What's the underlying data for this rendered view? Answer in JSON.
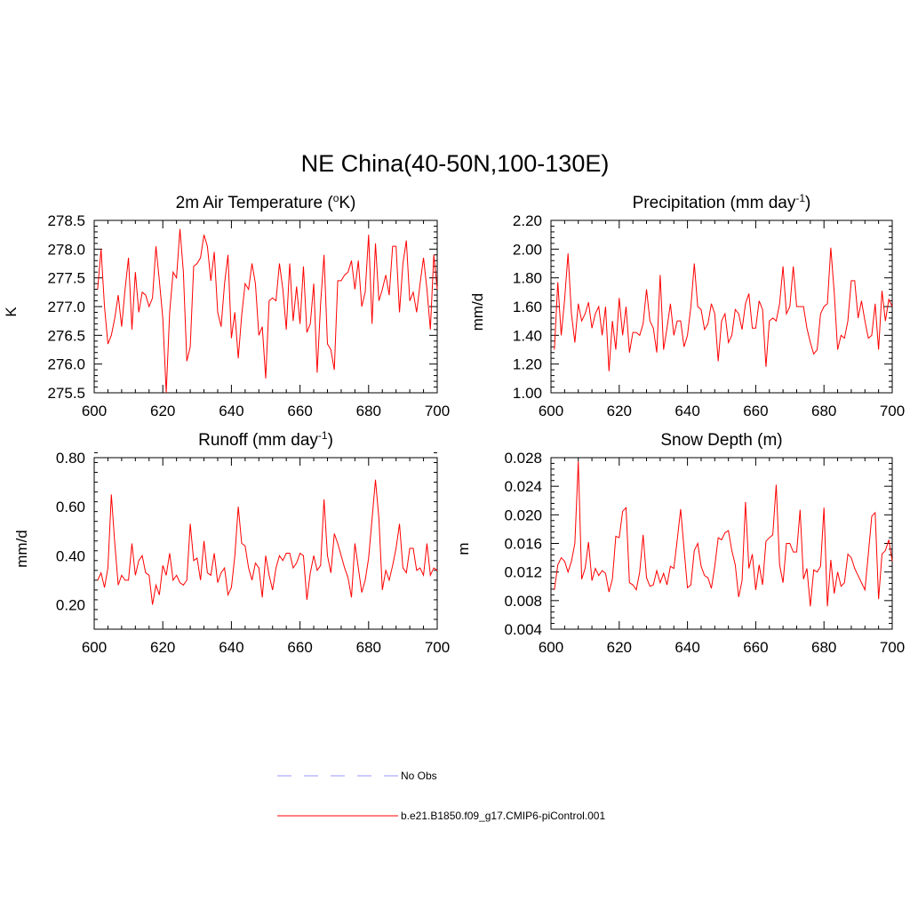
{
  "title": "NE China(40-50N,100-130E)",
  "colors": {
    "model": "#ff0000",
    "obs": "#9999ff",
    "axis": "#000000"
  },
  "legend": {
    "entries": [
      {
        "label": "No Obs",
        "style": "dashed",
        "color": "#9999ff"
      },
      {
        "label": "b.e21.B1850.f09_g17.CMIP6-piControl.001",
        "style": "solid",
        "color": "#ff0000"
      }
    ]
  },
  "chart_data": [
    {
      "type": "line",
      "title": "2m Air Temperature (",
      "title_sup": "o",
      "title_after": "K)",
      "ylabel": "K",
      "xlim": [
        600,
        700
      ],
      "ylim": [
        275.5,
        278.5
      ],
      "xticks": [
        600,
        620,
        640,
        660,
        680,
        700
      ],
      "yticks": [
        275.5,
        276.0,
        276.5,
        277.0,
        277.5,
        278.0,
        278.5
      ],
      "ytick_labels": [
        "275.5",
        "276.0",
        "276.5",
        "277.0",
        "277.5",
        "278.0",
        "278.5"
      ],
      "yminor": 0.1,
      "x_start": 601,
      "series": [
        {
          "name": "b.e21.B1850.f09_g17.CMIP6-piControl.001",
          "values": [
            277.3,
            278.0,
            277.0,
            276.35,
            276.5,
            276.8,
            277.2,
            276.65,
            277.3,
            277.85,
            276.6,
            277.6,
            276.9,
            277.25,
            277.2,
            277.0,
            277.15,
            278.05,
            277.45,
            276.8,
            275.5,
            276.9,
            277.6,
            277.5,
            278.35,
            277.6,
            276.05,
            276.3,
            277.7,
            277.75,
            277.85,
            278.25,
            278.05,
            277.45,
            277.95,
            276.9,
            276.65,
            277.4,
            277.9,
            276.45,
            276.9,
            276.1,
            276.85,
            277.4,
            277.3,
            277.75,
            277.4,
            276.5,
            276.65,
            275.75,
            277.1,
            277.15,
            277.1,
            277.75,
            277.3,
            276.6,
            277.75,
            276.75,
            277.35,
            276.7,
            277.7,
            276.55,
            276.7,
            277.4,
            275.85,
            277.05,
            277.9,
            276.35,
            276.25,
            275.9,
            277.45,
            277.45,
            277.55,
            277.6,
            277.8,
            277.3,
            277.8,
            277.0,
            277.25,
            278.25,
            276.7,
            278.1,
            277.1,
            277.3,
            277.55,
            277.2,
            278.05,
            278.05,
            276.9,
            277.75,
            278.15,
            277.1,
            277.25,
            276.9,
            277.4,
            277.85,
            277.3,
            276.6,
            277.9,
            277.3
          ]
        }
      ]
    },
    {
      "type": "line",
      "title": "Precipitation (mm day",
      "title_sup": "-1",
      "title_after": ")",
      "ylabel": "mm/d",
      "xlim": [
        600,
        700
      ],
      "ylim": [
        1.0,
        2.2
      ],
      "xticks": [
        600,
        620,
        640,
        660,
        680,
        700
      ],
      "yticks": [
        1.0,
        1.2,
        1.4,
        1.6,
        1.8,
        2.0,
        2.2
      ],
      "ytick_labels": [
        "1.00",
        "1.20",
        "1.40",
        "1.60",
        "1.80",
        "2.00",
        "2.20"
      ],
      "yminor": 0.04,
      "x_start": 601,
      "series": [
        {
          "name": "b.e21.B1850.f09_g17.CMIP6-piControl.001",
          "values": [
            1.3,
            1.77,
            1.4,
            1.65,
            1.97,
            1.55,
            1.35,
            1.62,
            1.5,
            1.55,
            1.63,
            1.45,
            1.55,
            1.6,
            1.4,
            1.6,
            1.15,
            1.5,
            1.3,
            1.66,
            1.4,
            1.6,
            1.28,
            1.42,
            1.42,
            1.4,
            1.48,
            1.72,
            1.5,
            1.45,
            1.28,
            1.82,
            1.3,
            1.45,
            1.62,
            1.4,
            1.5,
            1.5,
            1.32,
            1.4,
            1.6,
            1.9,
            1.6,
            1.58,
            1.44,
            1.48,
            1.62,
            1.55,
            1.22,
            1.5,
            1.55,
            1.35,
            1.4,
            1.58,
            1.55,
            1.44,
            1.62,
            1.69,
            1.45,
            1.45,
            1.64,
            1.58,
            1.18,
            1.5,
            1.52,
            1.5,
            1.62,
            1.88,
            1.55,
            1.6,
            1.88,
            1.6,
            1.6,
            1.6,
            1.45,
            1.35,
            1.27,
            1.3,
            1.55,
            1.6,
            1.62,
            2.01,
            1.7,
            1.3,
            1.4,
            1.38,
            1.5,
            1.78,
            1.78,
            1.52,
            1.64,
            1.5,
            1.38,
            1.4,
            1.62,
            1.3,
            1.71,
            1.5,
            1.65,
            1.6
          ]
        }
      ]
    },
    {
      "type": "line",
      "title": "Runoff (mm day",
      "title_sup": "-1",
      "title_after": ")",
      "ylabel": "mm/d",
      "xlim": [
        600,
        700
      ],
      "ylim": [
        0.1,
        0.8
      ],
      "xticks": [
        600,
        620,
        640,
        660,
        680,
        700
      ],
      "yticks": [
        0.2,
        0.4,
        0.6,
        0.8
      ],
      "ytick_labels": [
        "0.20",
        "0.40",
        "0.60",
        "0.80"
      ],
      "yminor": 0.04,
      "x_start": 601,
      "series": [
        {
          "name": "b.e21.B1850.f09_g17.CMIP6-piControl.001",
          "values": [
            0.3,
            0.33,
            0.27,
            0.35,
            0.65,
            0.45,
            0.28,
            0.32,
            0.3,
            0.3,
            0.45,
            0.32,
            0.38,
            0.4,
            0.33,
            0.32,
            0.2,
            0.28,
            0.24,
            0.36,
            0.32,
            0.41,
            0.3,
            0.32,
            0.29,
            0.28,
            0.3,
            0.53,
            0.38,
            0.39,
            0.3,
            0.46,
            0.33,
            0.32,
            0.41,
            0.29,
            0.33,
            0.35,
            0.24,
            0.27,
            0.4,
            0.6,
            0.45,
            0.44,
            0.35,
            0.3,
            0.37,
            0.35,
            0.23,
            0.4,
            0.32,
            0.26,
            0.35,
            0.4,
            0.38,
            0.41,
            0.41,
            0.35,
            0.37,
            0.41,
            0.4,
            0.22,
            0.33,
            0.4,
            0.34,
            0.36,
            0.63,
            0.4,
            0.33,
            0.49,
            0.45,
            0.4,
            0.35,
            0.31,
            0.23,
            0.45,
            0.35,
            0.25,
            0.3,
            0.39,
            0.55,
            0.71,
            0.55,
            0.26,
            0.34,
            0.3,
            0.36,
            0.43,
            0.53,
            0.35,
            0.33,
            0.43,
            0.43,
            0.34,
            0.35,
            0.32,
            0.45,
            0.32,
            0.35,
            0.34
          ]
        }
      ]
    },
    {
      "type": "line",
      "title": "Snow Depth (m)",
      "title_sup": "",
      "title_after": "",
      "ylabel": "m",
      "xlim": [
        600,
        700
      ],
      "ylim": [
        0.004,
        0.028
      ],
      "xticks": [
        600,
        620,
        640,
        660,
        680,
        700
      ],
      "yticks": [
        0.004,
        0.008,
        0.012,
        0.016,
        0.02,
        0.024,
        0.028
      ],
      "ytick_labels": [
        "0.004",
        "0.008",
        "0.012",
        "0.016",
        "0.020",
        "0.024",
        "0.028"
      ],
      "yminor": 0.0008,
      "x_start": 601,
      "series": [
        {
          "name": "b.e21.B1850.f09_g17.CMIP6-piControl.001",
          "values": [
            0.0095,
            0.013,
            0.014,
            0.0135,
            0.012,
            0.0135,
            0.016,
            0.0275,
            0.011,
            0.0125,
            0.0162,
            0.0108,
            0.0125,
            0.0115,
            0.0122,
            0.0118,
            0.0092,
            0.011,
            0.017,
            0.0168,
            0.0205,
            0.021,
            0.0105,
            0.0102,
            0.0095,
            0.012,
            0.0172,
            0.0112,
            0.01,
            0.0102,
            0.0122,
            0.0105,
            0.0118,
            0.0102,
            0.0128,
            0.0125,
            0.0165,
            0.0208,
            0.0152,
            0.0098,
            0.0102,
            0.015,
            0.016,
            0.0128,
            0.0115,
            0.0112,
            0.0097,
            0.0128,
            0.0168,
            0.0165,
            0.0175,
            0.0178,
            0.015,
            0.013,
            0.0085,
            0.0108,
            0.0218,
            0.0125,
            0.0145,
            0.0095,
            0.013,
            0.0102,
            0.0163,
            0.0168,
            0.0172,
            0.0242,
            0.013,
            0.0105,
            0.016,
            0.016,
            0.0148,
            0.0148,
            0.0207,
            0.011,
            0.0125,
            0.0072,
            0.0123,
            0.012,
            0.0128,
            0.021,
            0.0072,
            0.0137,
            0.009,
            0.012,
            0.01,
            0.0105,
            0.0145,
            0.014,
            0.0125,
            0.0115,
            0.0105,
            0.0095,
            0.0145,
            0.0198,
            0.0203,
            0.0082,
            0.0145,
            0.015,
            0.0165,
            0.0135
          ]
        }
      ]
    }
  ]
}
